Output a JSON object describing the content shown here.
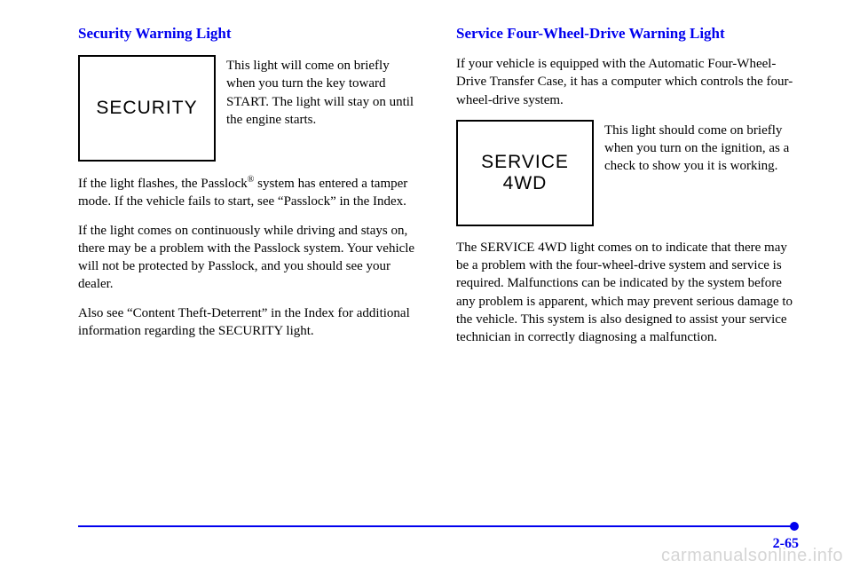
{
  "left": {
    "title": "Security Warning Light",
    "iconLines": [
      "SECURITY"
    ],
    "iconCaption": "This light will come on briefly when you turn the key toward START. The light will stay on until the engine starts.",
    "p1a": "If the light flashes, the Passlock",
    "p1sup": "®",
    "p1b": " system has entered a tamper mode. If the vehicle fails to start, see “Passlock” in the Index.",
    "p2": "If the light comes on continuously while driving and stays on, there may be a problem with the Passlock system. Your vehicle will not be protected by Passlock, and you should see your dealer.",
    "p3": "Also see “Content Theft-Deterrent” in the Index for additional information regarding the SECURITY light."
  },
  "right": {
    "title": "Service Four-Wheel-Drive Warning Light",
    "intro": "If your vehicle is equipped with the Automatic Four-Wheel-Drive Transfer Case, it has a computer which controls the four-wheel-drive system.",
    "iconLines": [
      "SERVICE",
      "4WD"
    ],
    "iconCaption": "This light should come on briefly when you turn on the ignition, as a check to show you it is working.",
    "p1": "The SERVICE 4WD light comes on to indicate that there may be a problem with the four-wheel-drive system and service is required. Malfunctions can be indicated by the system before any problem is apparent, which may prevent serious damage to the vehicle. This system is also designed to assist your service technician in correctly diagnosing a malfunction."
  },
  "pageNumber": "2-65",
  "watermark": "carmanualsonline.info"
}
